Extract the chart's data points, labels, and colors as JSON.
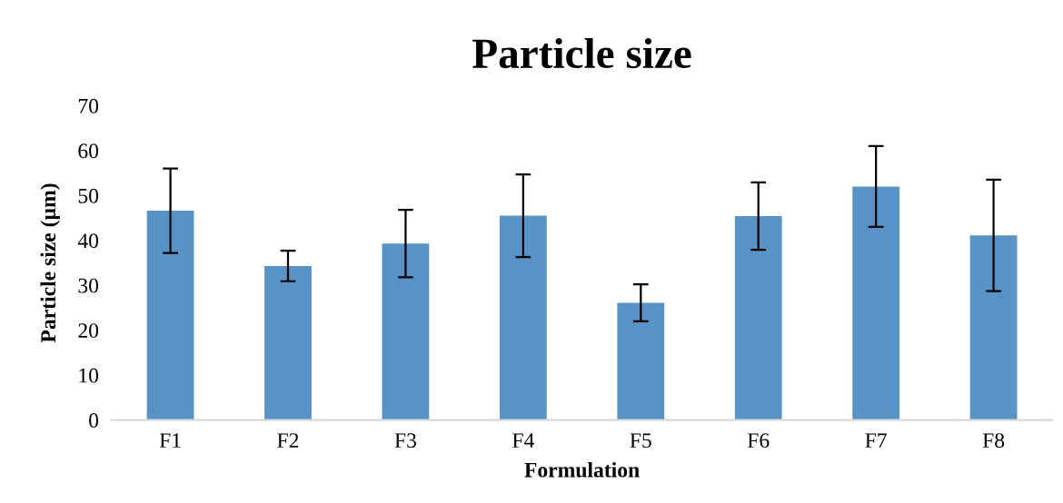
{
  "chart_data": {
    "type": "bar",
    "title": "Particle size",
    "xlabel": "Formulation",
    "ylabel": "Particle size (µm)",
    "categories": [
      "F1",
      "F2",
      "F3",
      "F4",
      "F5",
      "F6",
      "F7",
      "F8"
    ],
    "values": [
      46.6,
      34.3,
      39.3,
      45.5,
      26.1,
      45.4,
      52.0,
      41.1
    ],
    "errors": [
      9.4,
      3.4,
      7.5,
      9.2,
      4.1,
      7.5,
      9.0,
      12.4
    ],
    "color": "#5793c6",
    "ylim": [
      0,
      70
    ],
    "yticks": [
      0,
      10,
      20,
      30,
      40,
      50,
      60,
      70
    ],
    "grid": false,
    "legend": false
  }
}
